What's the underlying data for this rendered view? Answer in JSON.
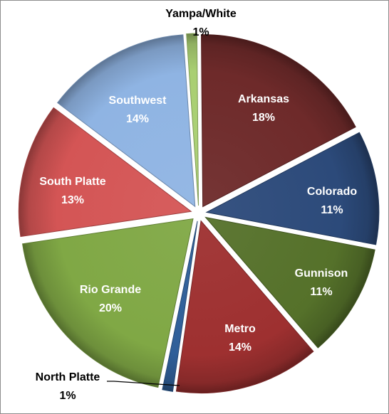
{
  "chart_data": {
    "type": "pie",
    "title": "",
    "start_angle_deg": -4,
    "direction": "clockwise",
    "slices": [
      {
        "label": "Yampa/White",
        "value": 1,
        "value_label": "1%",
        "color": "#a9cf72",
        "label_style": "outside"
      },
      {
        "label": "Arkansas",
        "value": 18,
        "value_label": "18%",
        "color": "#6e2a2a",
        "label_style": "inside"
      },
      {
        "label": "Colorado",
        "value": 11,
        "value_label": "11%",
        "color": "#2c4a7a",
        "label_style": "inside"
      },
      {
        "label": "Gunnison",
        "value": 11,
        "value_label": "11%",
        "color": "#55712a",
        "label_style": "inside"
      },
      {
        "label": "Metro",
        "value": 14,
        "value_label": "14%",
        "color": "#9e3030",
        "label_style": "inside"
      },
      {
        "label": "North Platte",
        "value": 1,
        "value_label": "1%",
        "color": "#2f5f99",
        "label_style": "outside"
      },
      {
        "label": "Rio Grande",
        "value": 20,
        "value_label": "20%",
        "color": "#80a845",
        "label_style": "inside"
      },
      {
        "label": "South Platte",
        "value": 13,
        "value_label": "13%",
        "color": "#d45555",
        "label_style": "inside"
      },
      {
        "label": "Southwest",
        "value": 14,
        "value_label": "14%",
        "color": "#8fb4e3",
        "label_style": "inside"
      }
    ]
  }
}
